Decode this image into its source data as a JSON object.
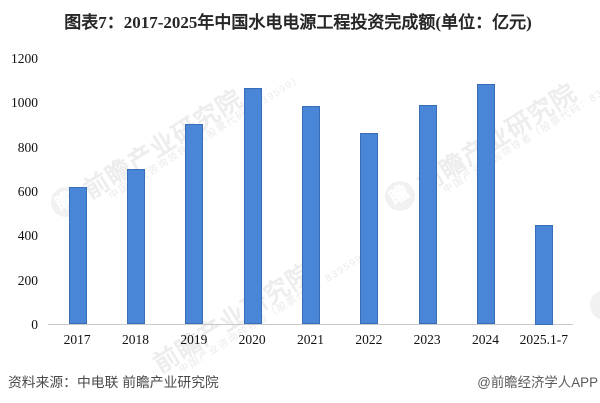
{
  "title": "图表7：2017-2025年中国水电电源工程投资完成额(单位：亿元)",
  "footer": {
    "source": "资料来源：中电联 前瞻产业研究院",
    "brand": "@前瞻经济学人APP"
  },
  "watermark": {
    "big_text": "前瞻产业研究院",
    "sub_text": "中国产业咨询领导者（股票代码：839599）",
    "logo_char": "瞻"
  },
  "colors": {
    "bar_fill": "#4a86d8",
    "bar_border": "#3a6db8",
    "axis_line": "#c9c9c9",
    "title_text": "#262626",
    "footer_text": "#4a4a4a",
    "watermark": "#e7e7e7"
  },
  "chart_data": {
    "type": "bar",
    "title": "图表7：2017-2025年中国水电电源工程投资完成额(单位：亿元)",
    "categories": [
      "2017",
      "2018",
      "2019",
      "2020",
      "2021",
      "2022",
      "2023",
      "2024",
      "2025.1-7"
    ],
    "values": [
      620,
      700,
      905,
      1065,
      985,
      865,
      990,
      1085,
      450
    ],
    "unit": "亿元",
    "xlabel": "",
    "ylabel": "",
    "ylim": [
      0,
      1200
    ],
    "yticks": [
      0,
      200,
      400,
      600,
      800,
      1000,
      1200
    ],
    "grid": false,
    "legend": false
  }
}
